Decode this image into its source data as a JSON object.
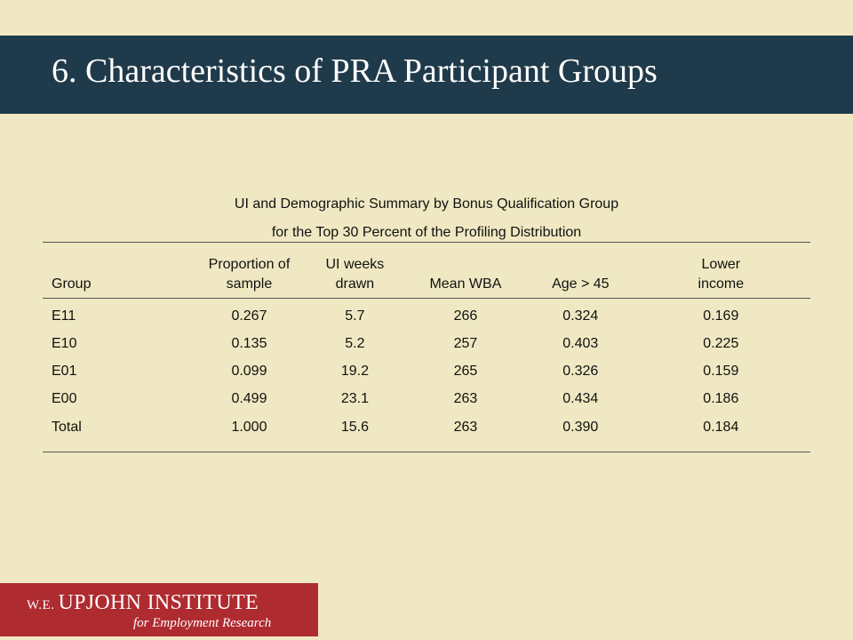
{
  "slide": {
    "title": "6.  Characteristics of PRA Participant Groups"
  },
  "table": {
    "caption_line1": "UI and Demographic Summary by Bonus Qualification Group",
    "caption_line2": "for the Top 30 Percent of the Profiling Distribution",
    "headers": {
      "group": "Group",
      "proportion_line1": "Proportion of",
      "proportion_line2": "sample",
      "ui_weeks_line1": "UI weeks",
      "ui_weeks_line2": "drawn",
      "mean_wba": "Mean WBA",
      "age": "Age > 45",
      "income_line1": "Lower",
      "income_line2": "income"
    },
    "rows": [
      {
        "group": "E11",
        "proportion": "0.267",
        "ui_weeks": "5.7",
        "mean_wba": "266",
        "age": "0.324",
        "income": "0.169"
      },
      {
        "group": "E10",
        "proportion": "0.135",
        "ui_weeks": "5.2",
        "mean_wba": "257",
        "age": "0.403",
        "income": "0.225"
      },
      {
        "group": "E01",
        "proportion": "0.099",
        "ui_weeks": "19.2",
        "mean_wba": "265",
        "age": "0.326",
        "income": "0.159"
      },
      {
        "group": "E00",
        "proportion": "0.499",
        "ui_weeks": "23.1",
        "mean_wba": "263",
        "age": "0.434",
        "income": "0.186"
      }
    ],
    "total": {
      "group": "Total",
      "proportion": "1.000",
      "ui_weeks": "15.6",
      "mean_wba": "263",
      "age": "0.390",
      "income": "0.184"
    }
  },
  "logo": {
    "prefix": "W.E.",
    "name": "UPJOHN INSTITUTE",
    "tagline": "for Employment Research"
  }
}
